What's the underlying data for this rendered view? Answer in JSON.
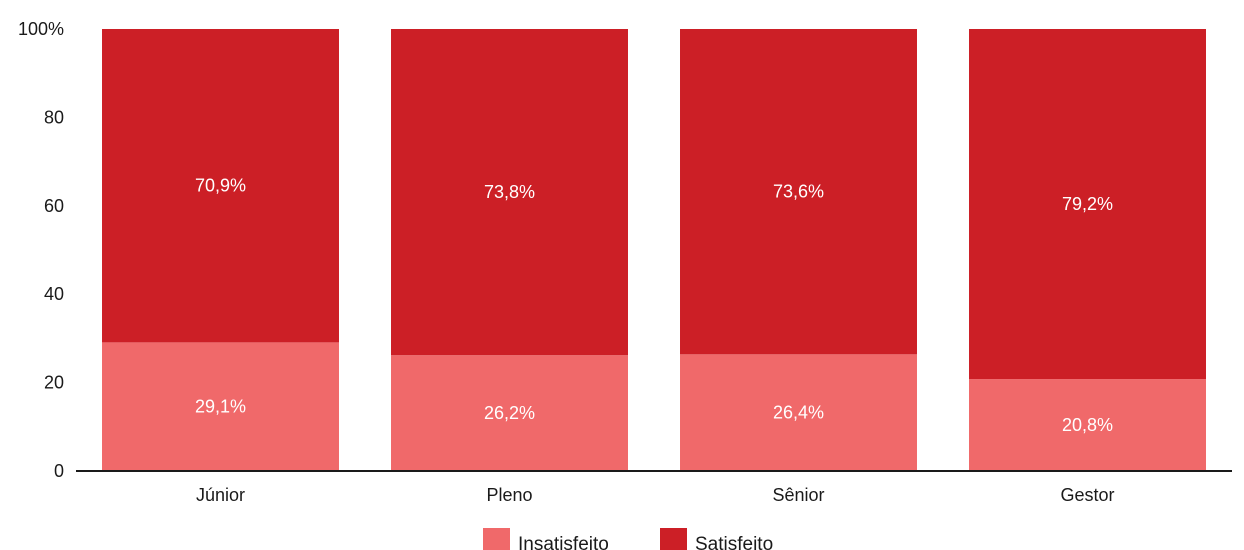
{
  "chart_data": {
    "type": "bar",
    "stacked": true,
    "categories": [
      "Júnior",
      "Pleno",
      "Sênior",
      "Gestor"
    ],
    "series": [
      {
        "name": "Insatisfeito",
        "values": [
          29.1,
          26.2,
          26.4,
          20.8
        ],
        "labels": [
          "29,1%",
          "26,2%",
          "26,4%",
          "20,8%"
        ],
        "color": "#f0696a"
      },
      {
        "name": "Satisfeito",
        "values": [
          70.9,
          73.8,
          73.6,
          79.2
        ],
        "labels": [
          "70,9%",
          "73,8%",
          "73,6%",
          "79,2%"
        ],
        "color": "#cc1f26"
      }
    ],
    "yticks": [
      "0",
      "20",
      "40",
      "60",
      "80",
      "100%"
    ],
    "ytick_values": [
      0,
      20,
      40,
      60,
      80,
      100
    ],
    "ylim": [
      0,
      100
    ],
    "grid": false,
    "legend_position": "bottom-center"
  }
}
